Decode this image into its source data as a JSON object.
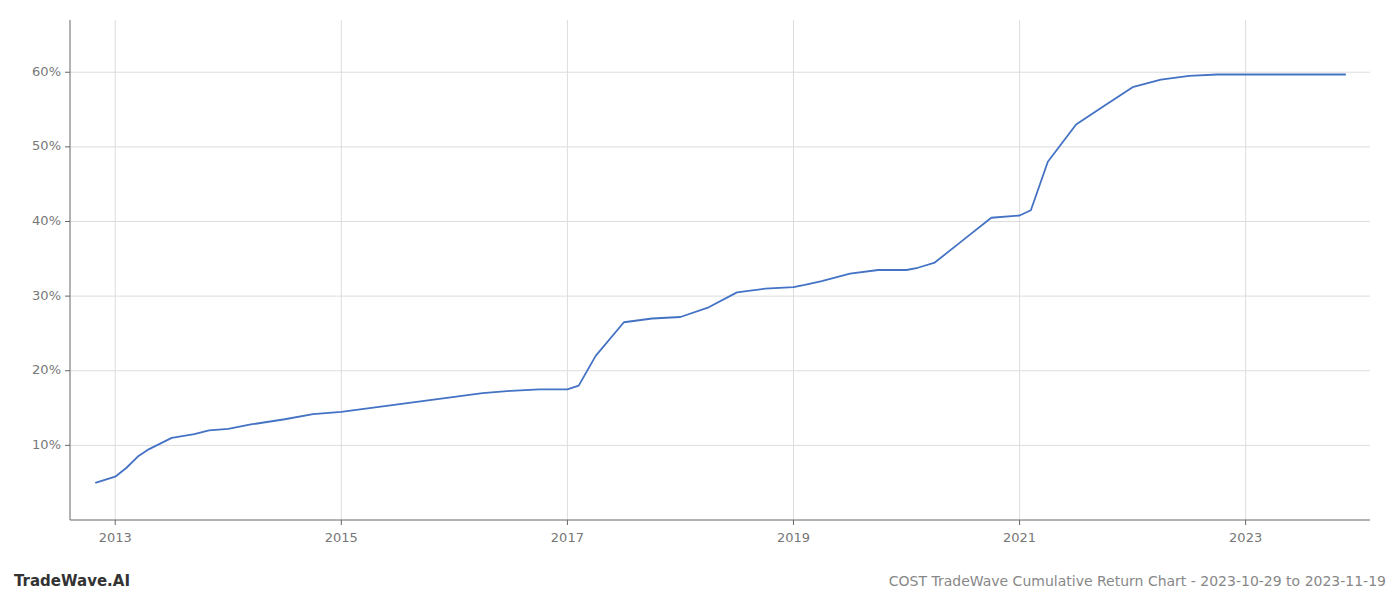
{
  "chart_data": {
    "type": "line",
    "title": "COST TradeWave Cumulative Return Chart - 2023-10-29 to 2023-11-19",
    "annotations": [
      "TradeWave.AI"
    ],
    "color": "#4472c4",
    "grid": true,
    "x": [
      2012.83,
      2013.0,
      2013.1,
      2013.2,
      2013.3,
      2013.5,
      2013.7,
      2013.83,
      2014.0,
      2014.2,
      2014.5,
      2014.75,
      2015.0,
      2015.25,
      2015.5,
      2015.75,
      2016.0,
      2016.25,
      2016.5,
      2016.75,
      2017.0,
      2017.1,
      2017.25,
      2017.5,
      2017.75,
      2018.0,
      2018.25,
      2018.5,
      2018.75,
      2019.0,
      2019.1,
      2019.25,
      2019.5,
      2019.75,
      2020.0,
      2020.1,
      2020.25,
      2020.5,
      2020.75,
      2021.0,
      2021.1,
      2021.25,
      2021.5,
      2021.75,
      2022.0,
      2022.25,
      2022.5,
      2022.75,
      2023.0,
      2023.5,
      2023.88
    ],
    "values": [
      5.0,
      5.8,
      7.0,
      8.5,
      9.5,
      11.0,
      11.5,
      12.0,
      12.2,
      12.8,
      13.5,
      14.2,
      14.5,
      15.0,
      15.5,
      16.0,
      16.5,
      17.0,
      17.3,
      17.5,
      17.5,
      18.0,
      22.0,
      26.5,
      27.0,
      27.2,
      28.5,
      30.5,
      31.0,
      31.2,
      31.5,
      32.0,
      33.0,
      33.5,
      33.5,
      33.8,
      34.5,
      37.5,
      40.5,
      40.8,
      41.5,
      48.0,
      53.0,
      55.5,
      58.0,
      59.0,
      59.5,
      59.7,
      59.7,
      59.7,
      59.7
    ],
    "xlim": [
      2012.6,
      2024.1
    ],
    "ylim": [
      0,
      67
    ],
    "xticks": [
      2013,
      2015,
      2017,
      2019,
      2021,
      2023
    ],
    "yticks": [
      {
        "value": 10,
        "label": "10%"
      },
      {
        "value": 20,
        "label": "20%"
      },
      {
        "value": 30,
        "label": "30%"
      },
      {
        "value": 40,
        "label": "40%"
      },
      {
        "value": 50,
        "label": "50%"
      },
      {
        "value": 60,
        "label": "60%"
      }
    ]
  }
}
